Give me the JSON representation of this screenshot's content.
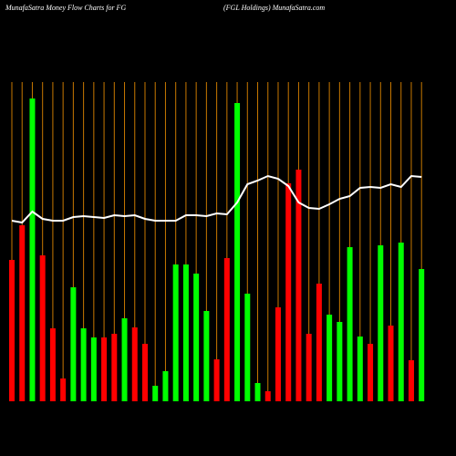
{
  "chart_data": {
    "type": "bar",
    "title": "MunafaSatra  Money Flow  Charts for FG",
    "subtitle": "(FGL  Holdings) MunafaSatra.com",
    "ylim": [
      0,
      350
    ],
    "values": [
      155,
      193,
      332,
      160,
      80,
      25,
      125,
      80,
      70,
      70,
      74,
      91,
      81,
      63,
      17,
      33,
      150,
      150,
      140,
      99,
      46,
      157,
      327,
      118,
      20,
      11,
      103,
      239,
      254,
      74,
      129,
      95,
      87,
      169,
      71,
      63,
      171,
      83,
      174,
      45,
      145
    ],
    "colors": [
      "#ff0000",
      "#ff0000",
      "#00ff00",
      "#ff0000",
      "#ff0000",
      "#ff0000",
      "#00ff00",
      "#00ff00",
      "#00ff00",
      "#ff0000",
      "#ff0000",
      "#00ff00",
      "#ff0000",
      "#ff0000",
      "#00ff00",
      "#00ff00",
      "#00ff00",
      "#00ff00",
      "#00ff00",
      "#00ff00",
      "#ff0000",
      "#ff0000",
      "#00ff00",
      "#00ff00",
      "#00ff00",
      "#ff0000",
      "#ff0000",
      "#ff0000",
      "#ff0000",
      "#ff0000",
      "#ff0000",
      "#00ff00",
      "#00ff00",
      "#00ff00",
      "#00ff00",
      "#ff0000",
      "#00ff00",
      "#ff0000",
      "#00ff00",
      "#ff0000",
      "#00ff00"
    ],
    "gridline_color": "#c87800",
    "line": {
      "color": "#ffffff",
      "values": [
        198,
        196,
        208,
        200,
        198,
        198,
        202,
        203,
        202,
        201,
        204,
        203,
        204,
        200,
        198,
        198,
        198,
        204,
        204,
        203,
        206,
        205,
        218,
        238,
        242,
        247,
        244,
        236,
        218,
        212,
        211,
        216,
        222,
        225,
        234,
        235,
        234,
        238,
        235,
        247,
        246
      ]
    }
  }
}
